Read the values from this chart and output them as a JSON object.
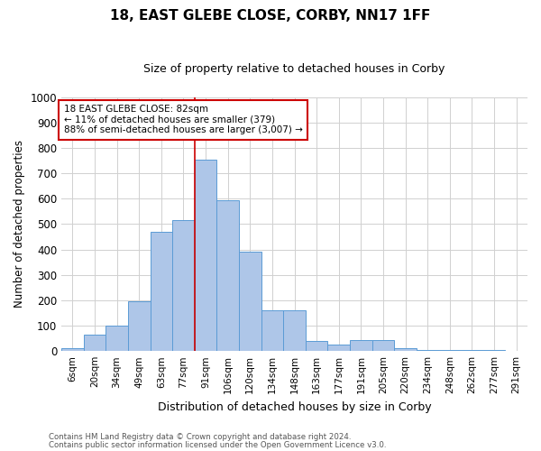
{
  "title": "18, EAST GLEBE CLOSE, CORBY, NN17 1FF",
  "subtitle": "Size of property relative to detached houses in Corby",
  "xlabel": "Distribution of detached houses by size in Corby",
  "ylabel": "Number of detached properties",
  "bar_labels": [
    "6sqm",
    "20sqm",
    "34sqm",
    "49sqm",
    "63sqm",
    "77sqm",
    "91sqm",
    "106sqm",
    "120sqm",
    "134sqm",
    "148sqm",
    "163sqm",
    "177sqm",
    "191sqm",
    "205sqm",
    "220sqm",
    "234sqm",
    "248sqm",
    "262sqm",
    "277sqm",
    "291sqm"
  ],
  "bar_values": [
    10,
    65,
    100,
    195,
    470,
    515,
    755,
    595,
    390,
    160,
    160,
    40,
    25,
    42,
    42,
    10,
    5,
    5,
    5,
    5,
    2
  ],
  "bar_color": "#aec6e8",
  "bar_edge_color": "#5b9bd5",
  "vline_x": 5.5,
  "vline_color": "#cc0000",
  "annotation_text": "18 EAST GLEBE CLOSE: 82sqm\n← 11% of detached houses are smaller (379)\n88% of semi-detached houses are larger (3,007) →",
  "annotation_box_color": "#cc0000",
  "ylim": [
    0,
    1000
  ],
  "yticks": [
    0,
    100,
    200,
    300,
    400,
    500,
    600,
    700,
    800,
    900,
    1000
  ],
  "footer_line1": "Contains HM Land Registry data © Crown copyright and database right 2024.",
  "footer_line2": "Contains public sector information licensed under the Open Government Licence v3.0.",
  "background_color": "#ffffff",
  "grid_color": "#d0d0d0"
}
